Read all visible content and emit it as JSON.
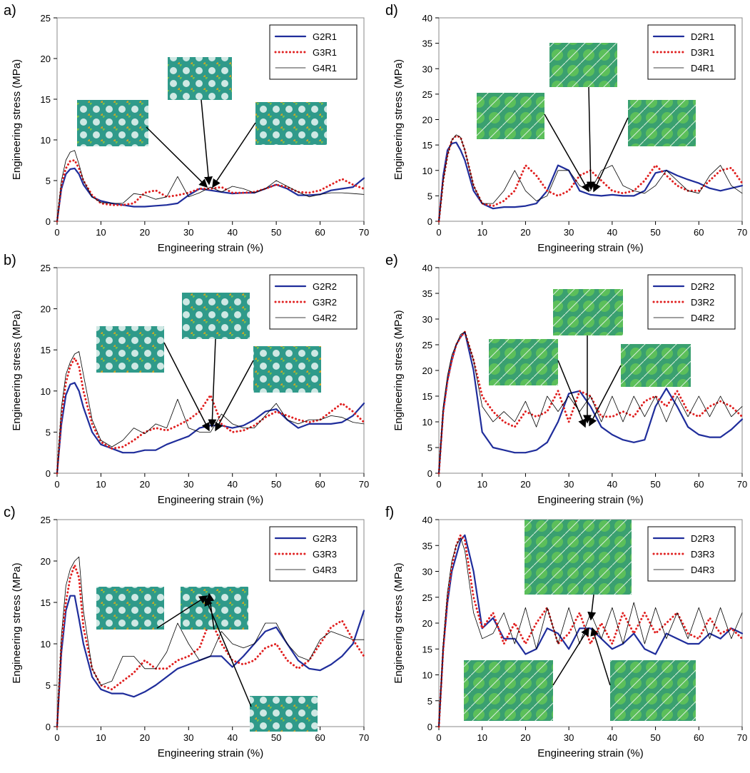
{
  "chart_data": [
    {
      "type": "line",
      "panel": "a)",
      "xlabel": "Engineering strain (%)",
      "ylabel": "Engineering stress (MPa)",
      "x": [
        0,
        1,
        2,
        3,
        4,
        5,
        6,
        8,
        10,
        12.5,
        15,
        17.5,
        20,
        22.5,
        25,
        27.5,
        30,
        32.5,
        35,
        37.5,
        40,
        42.5,
        45,
        47.5,
        50,
        52.5,
        55,
        57.5,
        60,
        62.5,
        65,
        67.5,
        70
      ],
      "xlim": [
        0,
        70
      ],
      "xticks": [
        0,
        10,
        20,
        30,
        40,
        50,
        60,
        70
      ],
      "ylim": [
        0,
        25
      ],
      "yticks": [
        0,
        5,
        10,
        15,
        20,
        25
      ],
      "series": [
        {
          "name": "G2R1",
          "color": "#1f2d9b",
          "values": [
            0,
            4,
            5.8,
            6.4,
            6.5,
            5.8,
            4.5,
            3,
            2.5,
            2.2,
            2.0,
            1.8,
            1.8,
            1.9,
            2.0,
            2.2,
            3.2,
            4.0,
            3.8,
            3.6,
            3.4,
            3.5,
            3.5,
            4.0,
            4.5,
            4.0,
            3.2,
            3.2,
            3.3,
            3.8,
            4.0,
            4.2,
            5.3
          ]
        },
        {
          "name": "G3R1",
          "color": "#e02020",
          "values": [
            0,
            4.5,
            6.5,
            7.4,
            7.5,
            6.5,
            5,
            3.2,
            2.2,
            2.0,
            2.0,
            2.2,
            3.5,
            3.8,
            3.0,
            3.2,
            3.5,
            4.0,
            4.0,
            4.2,
            3.5,
            3.5,
            3.6,
            4.0,
            4.5,
            4.2,
            3.6,
            3.5,
            3.8,
            4.5,
            5.2,
            4.5,
            4.0
          ]
        },
        {
          "name": "G4R1",
          "color": "#000000",
          "values": [
            0,
            5,
            7.5,
            8.5,
            8.7,
            7,
            5,
            3,
            2.3,
            2.2,
            2.2,
            3.4,
            3.2,
            2.7,
            3.0,
            5.5,
            3.0,
            3.5,
            4.2,
            3.6,
            4.3,
            4.0,
            3.5,
            4.0,
            5.0,
            4.3,
            3.6,
            3.0,
            3.3,
            3.5,
            3.5,
            3.4,
            3.3
          ]
        }
      ]
    },
    {
      "type": "line",
      "panel": "b)",
      "xlabel": "Engineering strain (%)",
      "ylabel": "Engineering stress (MPa)",
      "x": [
        0,
        1,
        2,
        3,
        4,
        5,
        6,
        8,
        10,
        12.5,
        15,
        17.5,
        20,
        22.5,
        25,
        27.5,
        30,
        32.5,
        35,
        37.5,
        40,
        42.5,
        45,
        47.5,
        50,
        52.5,
        55,
        57.5,
        60,
        62.5,
        65,
        67.5,
        70
      ],
      "xlim": [
        0,
        70
      ],
      "xticks": [
        0,
        10,
        20,
        30,
        40,
        50,
        60,
        70
      ],
      "ylim": [
        0,
        25
      ],
      "yticks": [
        0,
        5,
        10,
        15,
        20,
        25
      ],
      "series": [
        {
          "name": "G2R2",
          "color": "#1f2d9b",
          "values": [
            0,
            6,
            9.5,
            10.8,
            11,
            10,
            8,
            5,
            3.5,
            3.0,
            2.5,
            2.5,
            2.8,
            2.8,
            3.5,
            4.0,
            4.5,
            5.5,
            5.8,
            5.8,
            5.5,
            5.8,
            6.5,
            7.5,
            7.8,
            6.5,
            5.5,
            6.0,
            6.0,
            6.0,
            6.2,
            7.0,
            8.5
          ]
        },
        {
          "name": "G3R2",
          "color": "#e02020",
          "values": [
            0,
            7,
            11,
            13,
            14,
            13,
            10,
            6,
            3.8,
            3.0,
            3.2,
            4.0,
            5.0,
            5.5,
            5.2,
            5.8,
            6.5,
            7.5,
            9.5,
            6.0,
            5.0,
            5.2,
            5.8,
            6.8,
            7.5,
            7.0,
            6.5,
            6.2,
            6.5,
            7.5,
            8.5,
            7.5,
            6.2
          ]
        },
        {
          "name": "G4R2",
          "color": "#000000",
          "values": [
            0,
            8,
            12,
            13.5,
            14.5,
            14.8,
            12,
            6.5,
            4,
            3.2,
            4.0,
            5.5,
            4.8,
            6.0,
            5.5,
            9.0,
            5.5,
            5.0,
            5.0,
            7.2,
            6.0,
            5.5,
            5.5,
            7.0,
            8.5,
            6.5,
            6.0,
            6.5,
            6.5,
            7.0,
            6.8,
            6.2,
            6.0
          ]
        }
      ]
    },
    {
      "type": "line",
      "panel": "c)",
      "xlabel": "Engineering strain (%)",
      "ylabel": "Engineering stress (MPa)",
      "x": [
        0,
        1,
        2,
        3,
        4,
        5,
        6,
        8,
        10,
        12.5,
        15,
        17.5,
        20,
        22.5,
        25,
        27.5,
        30,
        32.5,
        35,
        37.5,
        40,
        42.5,
        45,
        47.5,
        50,
        52.5,
        55,
        57.5,
        60,
        62.5,
        65,
        67.5,
        70
      ],
      "xlim": [
        0,
        70
      ],
      "xticks": [
        0,
        10,
        20,
        30,
        40,
        50,
        60,
        70
      ],
      "ylim": [
        0,
        25
      ],
      "yticks": [
        0,
        5,
        10,
        15,
        20,
        25
      ],
      "series": [
        {
          "name": "G2R3",
          "color": "#1f2d9b",
          "values": [
            0,
            9,
            14,
            15.8,
            15.8,
            13,
            10,
            6,
            4.5,
            4.0,
            4.0,
            3.6,
            4.2,
            5.0,
            6.0,
            7.0,
            7.5,
            8.0,
            8.5,
            8.5,
            7.2,
            8.5,
            10.0,
            11.5,
            12.0,
            10.0,
            8.0,
            7.0,
            6.8,
            7.5,
            8.5,
            10.0,
            14.0
          ]
        },
        {
          "name": "G3R3",
          "color": "#e02020",
          "values": [
            0,
            10,
            15,
            18,
            19.5,
            18,
            12,
            7,
            5,
            4.5,
            5.5,
            6.5,
            8.0,
            7.0,
            7.0,
            8.0,
            8.5,
            9.5,
            13,
            10,
            8.0,
            7.5,
            8.0,
            9.5,
            10.0,
            8.0,
            7.0,
            8.0,
            10.0,
            12.0,
            12.8,
            10.5,
            8.5
          ]
        },
        {
          "name": "G4R3",
          "color": "#000000",
          "values": [
            0,
            11,
            17,
            19,
            20,
            20.5,
            14,
            7,
            5,
            5.5,
            8.5,
            8.5,
            7.0,
            7.0,
            9.0,
            12.5,
            10.0,
            8.0,
            8.5,
            11.5,
            10.0,
            9.5,
            10.0,
            12.5,
            12.5,
            10.0,
            8.5,
            8.0,
            10.5,
            11.5,
            11.0,
            10.5,
            10.5
          ]
        }
      ]
    },
    {
      "type": "line",
      "panel": "d)",
      "xlabel": "Engineering strain (%)",
      "ylabel": "Engineering stress (MPa)",
      "x": [
        0,
        1,
        2,
        3,
        4,
        5,
        6,
        8,
        10,
        12.5,
        15,
        17.5,
        20,
        22.5,
        25,
        27.5,
        30,
        32.5,
        35,
        37.5,
        40,
        42.5,
        45,
        47.5,
        50,
        52.5,
        55,
        57.5,
        60,
        62.5,
        65,
        67.5,
        70
      ],
      "xlim": [
        0,
        70
      ],
      "xticks": [
        0,
        10,
        20,
        30,
        40,
        50,
        60,
        70
      ],
      "ylim": [
        0,
        40
      ],
      "yticks": [
        0,
        5,
        10,
        15,
        20,
        25,
        30,
        35,
        40
      ],
      "series": [
        {
          "name": "D2R1",
          "color": "#1f2d9b",
          "values": [
            0,
            9,
            14,
            15.3,
            15.5,
            14,
            12,
            6,
            3.5,
            2.5,
            2.8,
            2.8,
            3,
            3.5,
            6,
            11,
            10,
            6,
            5.2,
            5.0,
            5.2,
            5.0,
            5.0,
            6,
            9.5,
            10,
            9,
            8.2,
            7.5,
            6.5,
            6,
            6.5,
            7
          ]
        },
        {
          "name": "D3R1",
          "color": "#e02020",
          "values": [
            0,
            8,
            13,
            16,
            16.8,
            16.5,
            14,
            7,
            3.5,
            3,
            4,
            6,
            11,
            9,
            6,
            5,
            6,
            9,
            10,
            8,
            6,
            5.5,
            6,
            8,
            11,
            9,
            7,
            6,
            6,
            8,
            10,
            10.5,
            7.5
          ]
        },
        {
          "name": "D4R1",
          "color": "#000000",
          "values": [
            0,
            8,
            13,
            16,
            17,
            16.5,
            14,
            7,
            3.5,
            3.5,
            6,
            10,
            6,
            4,
            5,
            10,
            10,
            7,
            6,
            10,
            11,
            7,
            6,
            5.5,
            7,
            10,
            8,
            6,
            5.5,
            9,
            11,
            7,
            5.5
          ]
        }
      ]
    },
    {
      "type": "line",
      "panel": "e)",
      "xlabel": "Engineering strain (%)",
      "ylabel": "Engineering stress (MPa)",
      "x": [
        0,
        1,
        2,
        3,
        4,
        5,
        6,
        8,
        10,
        12.5,
        15,
        17.5,
        20,
        22.5,
        25,
        27.5,
        30,
        32.5,
        35,
        37.5,
        40,
        42.5,
        45,
        47.5,
        50,
        52.5,
        55,
        57.5,
        60,
        62.5,
        65,
        67.5,
        70
      ],
      "xlim": [
        0,
        70
      ],
      "xticks": [
        0,
        10,
        20,
        30,
        40,
        50,
        60,
        70
      ],
      "ylim": [
        0,
        40
      ],
      "yticks": [
        0,
        5,
        10,
        15,
        20,
        25,
        30,
        35,
        40
      ],
      "series": [
        {
          "name": "D2R2",
          "color": "#1f2d9b",
          "values": [
            0,
            12,
            18,
            22,
            25,
            26.5,
            27.5,
            20,
            8,
            5,
            4.5,
            4,
            4,
            4.5,
            6,
            10,
            15.5,
            16,
            13,
            9,
            7.5,
            6.5,
            6,
            6.5,
            13,
            16.5,
            13,
            9,
            7.5,
            7,
            7,
            8.5,
            10.5
          ]
        },
        {
          "name": "D3R2",
          "color": "#e02020",
          "values": [
            0,
            12,
            18,
            22,
            25,
            26.5,
            27.5,
            22,
            15,
            12,
            10,
            9,
            12,
            11,
            12,
            16,
            10,
            16,
            15,
            11,
            11,
            12,
            11,
            14,
            15,
            13,
            16,
            12,
            11,
            13,
            14,
            13,
            11
          ]
        },
        {
          "name": "D4R2",
          "color": "#000000",
          "values": [
            0,
            13,
            19,
            23,
            25,
            27,
            27.5,
            22,
            13,
            10,
            12,
            10,
            14,
            9,
            15,
            12,
            15,
            12,
            15,
            10,
            15,
            10,
            15,
            11,
            15,
            10,
            15,
            11,
            15,
            11,
            15,
            11,
            13
          ]
        }
      ]
    },
    {
      "type": "line",
      "panel": "f)",
      "xlabel": "Engineering strain (%)",
      "ylabel": "Engineering stress (MPa)",
      "x": [
        0,
        1,
        2,
        3,
        4,
        5,
        6,
        8,
        10,
        12.5,
        15,
        17.5,
        20,
        22.5,
        25,
        27.5,
        30,
        32.5,
        35,
        37.5,
        40,
        42.5,
        45,
        47.5,
        50,
        52.5,
        55,
        57.5,
        60,
        62.5,
        65,
        67.5,
        70
      ],
      "xlim": [
        0,
        70
      ],
      "xticks": [
        0,
        10,
        20,
        30,
        40,
        50,
        60,
        70
      ],
      "ylim": [
        0,
        40
      ],
      "yticks": [
        0,
        5,
        10,
        15,
        20,
        25,
        30,
        35,
        40
      ],
      "series": [
        {
          "name": "D2R3",
          "color": "#1f2d9b",
          "values": [
            0,
            15,
            24,
            30,
            33,
            36,
            37,
            30,
            19,
            21,
            17,
            17,
            14,
            15,
            19,
            18,
            15,
            19,
            19,
            17,
            15,
            16,
            18,
            15,
            14,
            18,
            17,
            16,
            16,
            18,
            17,
            19,
            18
          ]
        },
        {
          "name": "D3R3",
          "color": "#e02020",
          "values": [
            0,
            15,
            25,
            31,
            35,
            37,
            36,
            25,
            19,
            22,
            16,
            20,
            16,
            20,
            23,
            16,
            18,
            22,
            16,
            20,
            16,
            22,
            18,
            22,
            18,
            20,
            22,
            18,
            17,
            21,
            18,
            19,
            17
          ]
        },
        {
          "name": "D4R3",
          "color": "#000000",
          "values": [
            0,
            16,
            26,
            32,
            35,
            36.5,
            34,
            22,
            17,
            18,
            22,
            16,
            23,
            15,
            23,
            16,
            23,
            16,
            22,
            17,
            23,
            16,
            24,
            16,
            23,
            17,
            22,
            17,
            23,
            17,
            23,
            17,
            22
          ]
        }
      ]
    }
  ]
}
